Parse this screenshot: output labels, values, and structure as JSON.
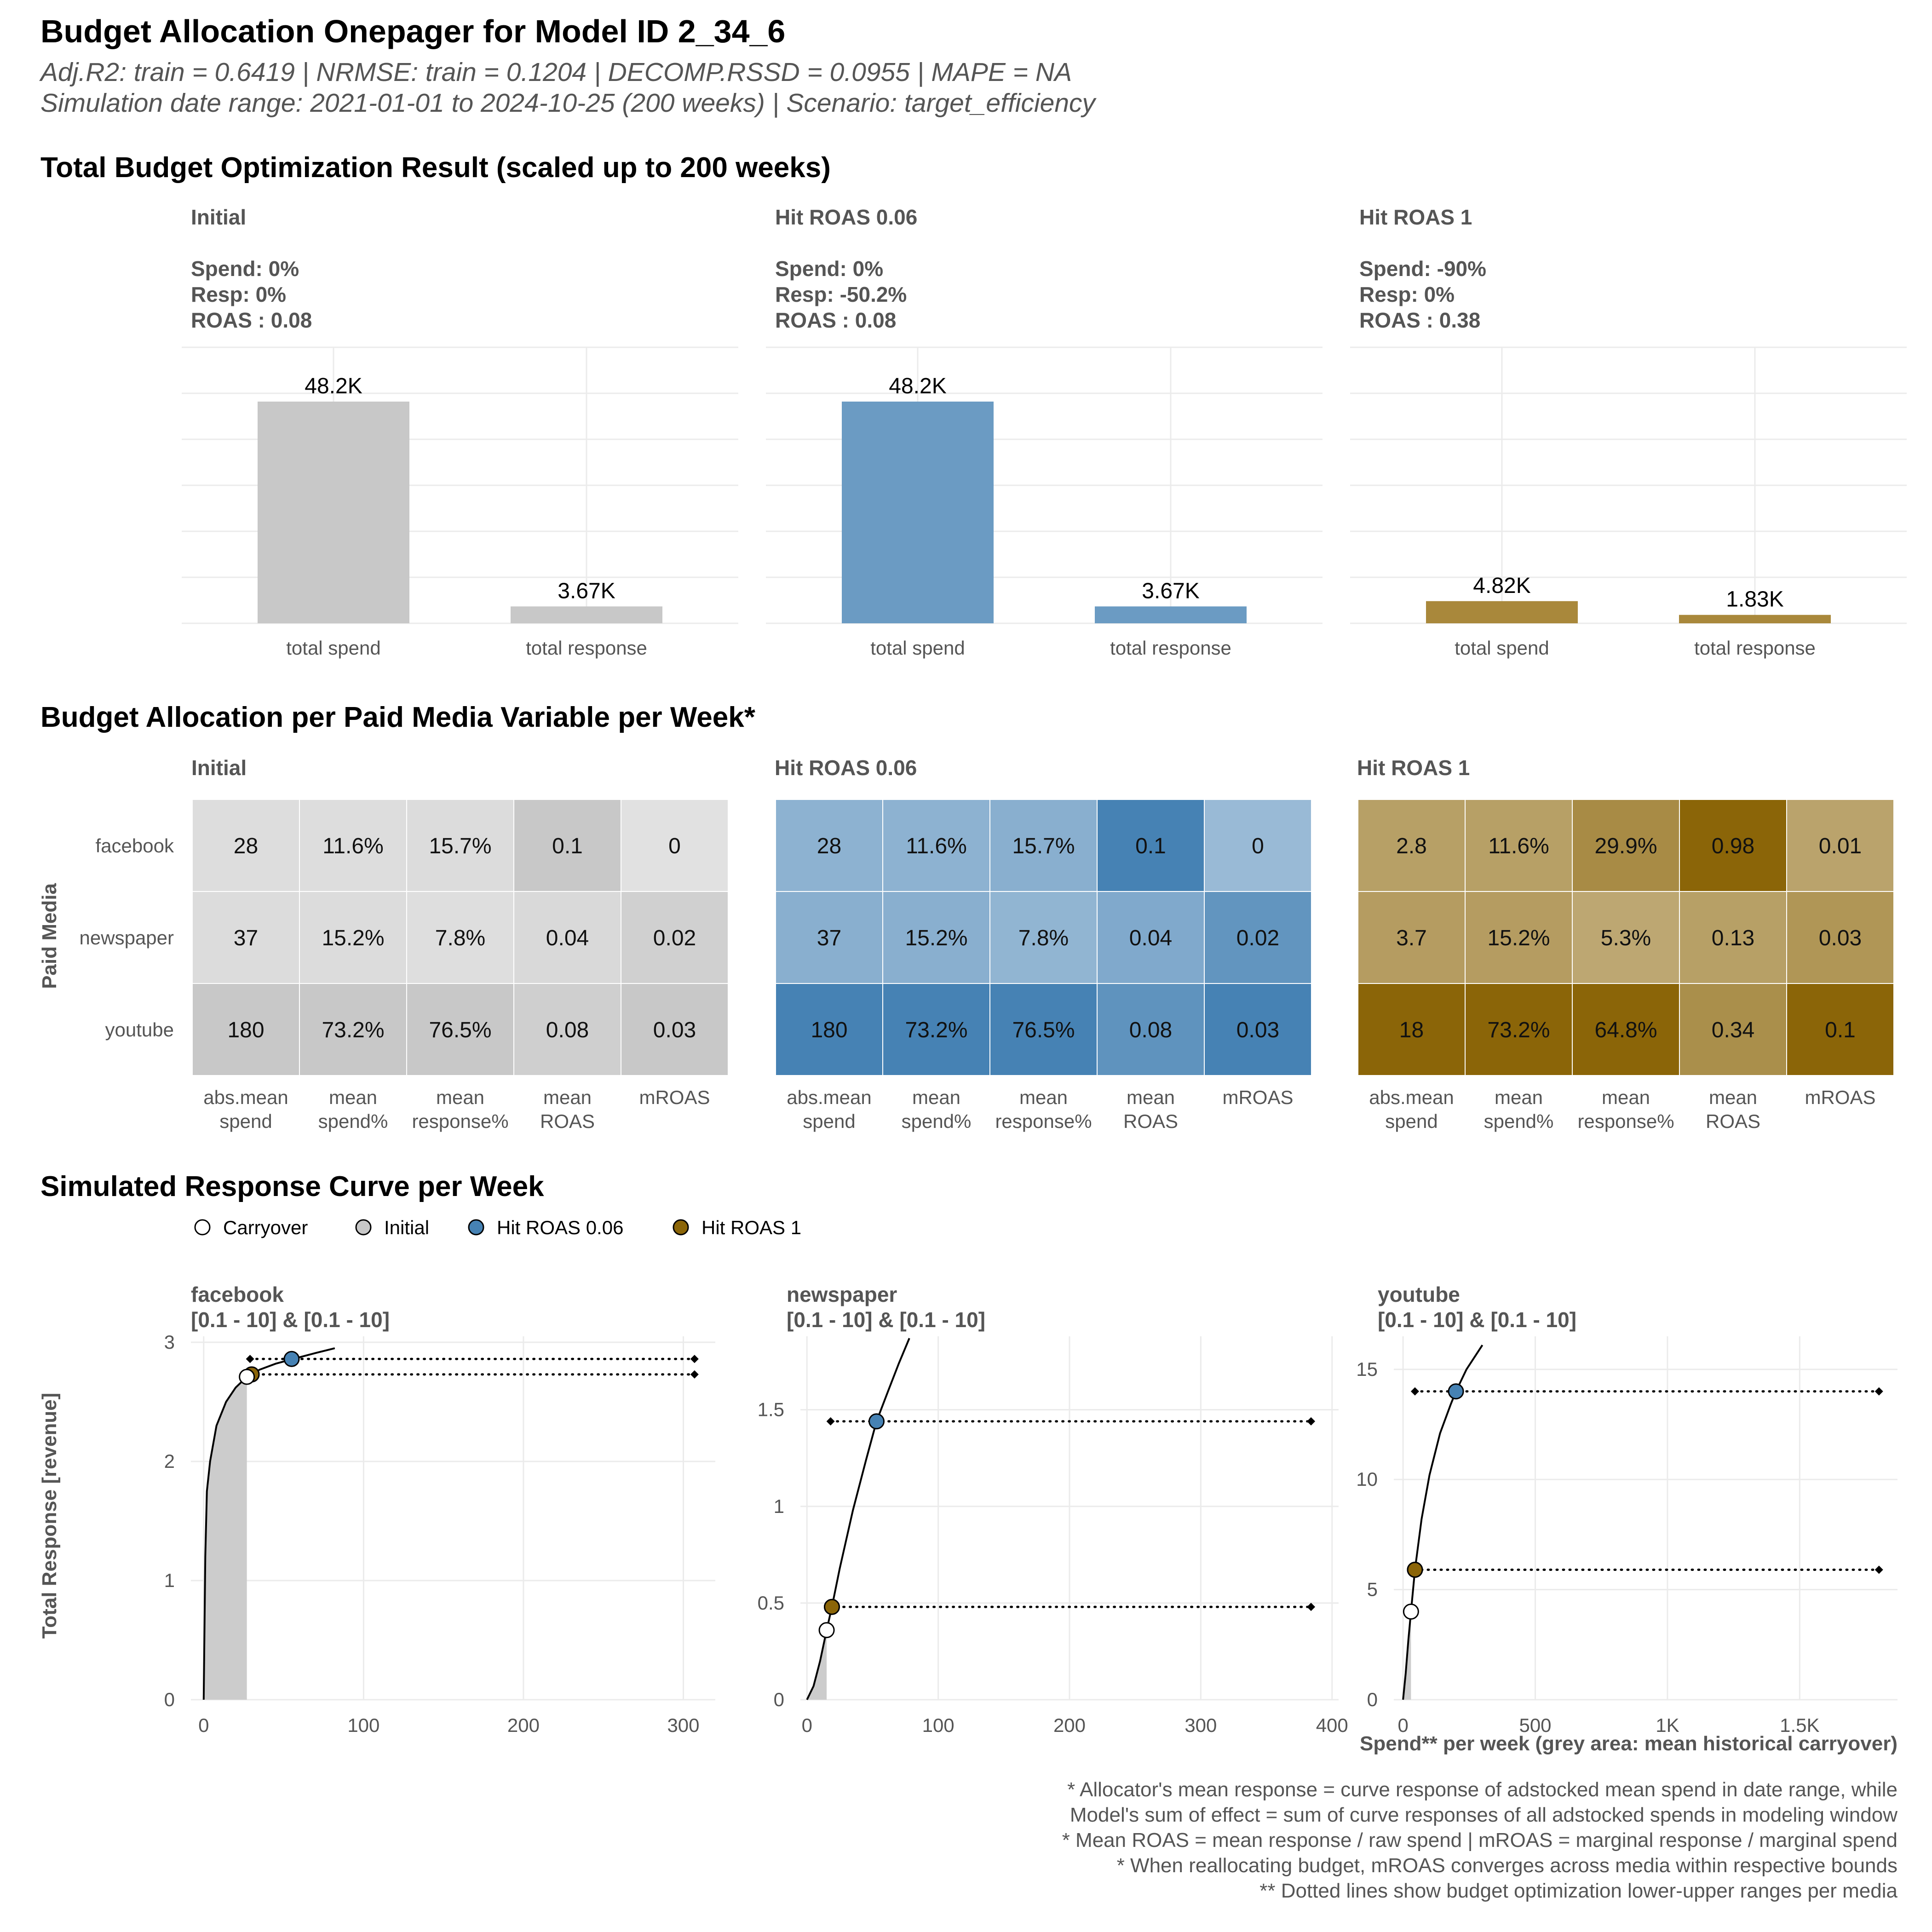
{
  "header": {
    "title": "Budget Allocation Onepager for Model ID 2_34_6",
    "subtitle1": "Adj.R2: train = 0.6419 | NRMSE: train = 0.1204 | DECOMP.RSSD = 0.0955 | MAPE = NA",
    "subtitle2": "Simulation date range: 2021-01-01 to 2024-10-25 (200 weeks) | Scenario: target_efficiency"
  },
  "colors": {
    "initial": "#c8c8c8",
    "roas006": "#4682b4",
    "roas1": "#8b6508",
    "grid": "#ebebeb"
  },
  "sections": {
    "total": "Total Budget Optimization Result (scaled up to 200 weeks)",
    "allocation": "Budget Allocation per Paid Media Variable per Week*",
    "curves": "Simulated Response Curve per Week"
  },
  "chart_data": [
    {
      "type": "bar",
      "title": "Total Budget Optimization Result (scaled up to 200 weeks)",
      "categories": [
        "total spend",
        "total response"
      ],
      "ylim": [
        0,
        60000
      ],
      "panels": [
        {
          "name": "Initial",
          "spend": "Spend: 0%",
          "resp": "Resp: 0%",
          "roas": "ROAS : 0.08",
          "values": [
            48200,
            3670
          ],
          "labels": [
            "48.2K",
            "3.67K"
          ],
          "color": "#c8c8c8"
        },
        {
          "name": "Hit ROAS 0.06",
          "spend": "Spend: 0%",
          "resp": "Resp: -50.2%",
          "roas": "ROAS : 0.08",
          "values": [
            48200,
            3670
          ],
          "labels": [
            "48.2K",
            "3.67K"
          ],
          "color": "#6b9bc3"
        },
        {
          "name": "Hit ROAS 1",
          "spend": "Spend: -90%",
          "resp": "Resp: 0%",
          "roas": "ROAS : 0.38",
          "values": [
            4820,
            1830
          ],
          "labels": [
            "4.82K",
            "1.83K"
          ],
          "color": "#a9883b"
        }
      ]
    },
    {
      "type": "heatmap",
      "title": "Budget Allocation per Paid Media Variable per Week*",
      "ylabel": "Paid Media",
      "rows": [
        "facebook",
        "newspaper",
        "youtube"
      ],
      "columns": [
        "abs.mean\nspend",
        "mean\nspend%",
        "mean\nresponse%",
        "mean\nROAS",
        "mROAS"
      ],
      "panels": [
        {
          "name": "Initial",
          "base": [
            200,
            200,
            200
          ],
          "values": [
            [
              "28",
              "11.6%",
              "15.7%",
              "0.1",
              "0"
            ],
            [
              "37",
              "15.2%",
              "7.8%",
              "0.04",
              "0.02"
            ],
            [
              "180",
              "73.2%",
              "76.5%",
              "0.08",
              "0.03"
            ]
          ],
          "intensity": [
            [
              0.15,
              0.15,
              0.2,
              1.0,
              0.0
            ],
            [
              0.2,
              0.2,
              0.1,
              0.3,
              0.66
            ],
            [
              1.0,
              1.0,
              1.0,
              0.7,
              1.0
            ]
          ]
        },
        {
          "name": "Hit ROAS 0.06",
          "base": [
            70,
            130,
            180
          ],
          "values": [
            [
              "28",
              "11.6%",
              "15.7%",
              "0.1",
              "0"
            ],
            [
              "37",
              "15.2%",
              "7.8%",
              "0.04",
              "0.02"
            ],
            [
              "180",
              "73.2%",
              "76.5%",
              "0.08",
              "0.03"
            ]
          ],
          "intensity": [
            [
              0.15,
              0.15,
              0.2,
              1.0,
              0.0
            ],
            [
              0.2,
              0.2,
              0.1,
              0.3,
              0.66
            ],
            [
              1.0,
              1.0,
              1.0,
              0.7,
              1.0
            ]
          ]
        },
        {
          "name": "Hit ROAS 1",
          "base": [
            139,
            101,
            8
          ],
          "values": [
            [
              "2.8",
              "11.6%",
              "29.9%",
              "0.98",
              "0.01"
            ],
            [
              "3.7",
              "15.2%",
              "5.3%",
              "0.13",
              "0.03"
            ],
            [
              "18",
              "73.2%",
              "64.8%",
              "0.34",
              "0.1"
            ]
          ],
          "intensity": [
            [
              0.15,
              0.15,
              0.45,
              1.0,
              0.1
            ],
            [
              0.2,
              0.2,
              0.05,
              0.15,
              0.3
            ],
            [
              1.0,
              1.0,
              1.0,
              0.4,
              1.0
            ]
          ]
        }
      ]
    },
    {
      "type": "line",
      "title": "Simulated Response Curve per Week",
      "ylabel": "Total Response [revenue]",
      "xlabel": "Spend** per week (grey area: mean historical carryover)",
      "legend": [
        "Carryover",
        "Initial",
        "Hit ROAS 0.06",
        "Hit ROAS 1"
      ],
      "legend_position": "top-left",
      "panels": [
        {
          "name": "facebook",
          "bounds": "[0.1 - 10] & [0.1 - 10]",
          "xlim": [
            -8,
            320
          ],
          "ylim": [
            0,
            3.05
          ],
          "xticks": [
            0,
            100,
            200,
            300
          ],
          "xtick_labels": [
            "0",
            "100",
            "200",
            "300"
          ],
          "yticks": [
            0,
            1,
            2,
            3
          ],
          "ytick_labels": [
            "0",
            "1",
            "2",
            "3"
          ],
          "carryover_x": 27,
          "curve": [
            [
              0,
              0
            ],
            [
              1,
              1.2
            ],
            [
              2,
              1.75
            ],
            [
              4,
              2.0
            ],
            [
              8,
              2.3
            ],
            [
              14,
              2.5
            ],
            [
              20,
              2.62
            ],
            [
              27,
              2.71
            ],
            [
              35,
              2.77
            ],
            [
              45,
              2.82
            ],
            [
              56,
              2.86
            ],
            [
              70,
              2.91
            ],
            [
              82,
              2.95
            ]
          ],
          "points": {
            "carryover": [
              27,
              2.71
            ],
            "initial": [
              30,
              2.73
            ],
            "roas006": [
              55,
              2.86
            ],
            "roas1": [
              30,
              2.73
            ]
          },
          "ranges": [
            [
              29,
              307,
              2.86
            ],
            [
              29,
              307,
              2.73
            ]
          ]
        },
        {
          "name": "newspaper",
          "bounds": "[0.1 - 10] & [0.1 - 10]",
          "xlim": [
            -5,
            405
          ],
          "ylim": [
            0,
            1.88
          ],
          "xticks": [
            0,
            100,
            200,
            300,
            400
          ],
          "xtick_labels": [
            "0",
            "100",
            "200",
            "300",
            "400"
          ],
          "yticks": [
            0,
            0.5,
            1,
            1.5
          ],
          "ytick_labels": [
            "0",
            "0.5",
            "1",
            "1.5"
          ],
          "carryover_x": 15,
          "curve": [
            [
              0,
              0
            ],
            [
              5,
              0.07
            ],
            [
              10,
              0.2
            ],
            [
              15,
              0.36
            ],
            [
              19,
              0.48
            ],
            [
              25,
              0.68
            ],
            [
              35,
              0.98
            ],
            [
              45,
              1.24
            ],
            [
              53,
              1.44
            ],
            [
              62,
              1.6
            ],
            [
              70,
              1.74
            ],
            [
              78,
              1.87
            ]
          ],
          "points": {
            "carryover": [
              15,
              0.36
            ],
            "initial": [
              19,
              0.48
            ],
            "roas006": [
              53,
              1.44
            ],
            "roas1": [
              19,
              0.48
            ]
          },
          "ranges": [
            [
              18,
              384,
              1.44
            ],
            [
              18,
              384,
              0.48
            ]
          ]
        },
        {
          "name": "youtube",
          "bounds": "[0.1 - 10] & [0.1 - 10]",
          "xlim": [
            -35,
            1870
          ],
          "ylim": [
            0,
            16.5
          ],
          "xticks": [
            0,
            500,
            1000,
            1500
          ],
          "xtick_labels": [
            "0",
            "500",
            "1K",
            "1.5K"
          ],
          "yticks": [
            0,
            5,
            10,
            15
          ],
          "ytick_labels": [
            "0",
            "5",
            "10",
            "15"
          ],
          "carryover_x": 30,
          "curve": [
            [
              0,
              0
            ],
            [
              10,
              1.2
            ],
            [
              20,
              2.7
            ],
            [
              30,
              4.0
            ],
            [
              45,
              5.9
            ],
            [
              70,
              8.2
            ],
            [
              100,
              10.2
            ],
            [
              140,
              12.1
            ],
            [
              180,
              13.4
            ],
            [
              200,
              14.0
            ],
            [
              240,
              15.0
            ],
            [
              300,
              16.1
            ]
          ],
          "points": {
            "carryover": [
              30,
              4.0
            ],
            "initial": [
              45,
              5.9
            ],
            "roas006": [
              200,
              14.0
            ],
            "roas1": [
              45,
              5.9
            ]
          },
          "ranges": [
            [
              45,
              1800,
              14.0
            ],
            [
              45,
              1800,
              5.9
            ]
          ]
        }
      ]
    }
  ],
  "footnotes": [
    "* Allocator's mean response = curve response of adstocked mean spend in date range, while",
    "Model's sum of effect = sum of curve responses of all adstocked spends in modeling window",
    "* Mean ROAS = mean response / raw spend | mROAS = marginal response / marginal spend",
    "* When reallocating budget, mROAS converges across media within respective bounds",
    "** Dotted lines show budget optimization lower-upper ranges per media"
  ]
}
